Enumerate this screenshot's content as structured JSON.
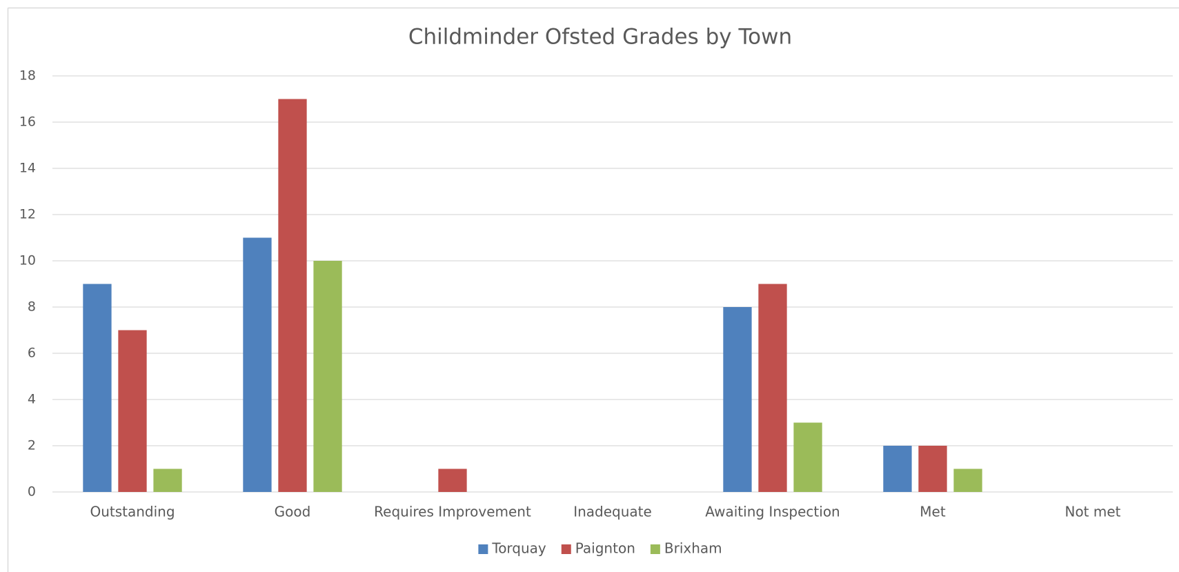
{
  "chart_data": {
    "type": "bar",
    "title": "Childminder Ofsted Grades by Town",
    "categories": [
      "Outstanding",
      "Good",
      "Requires Improvement",
      "Inadequate",
      "Awaiting Inspection",
      "Met",
      "Not met"
    ],
    "series": [
      {
        "name": "Torquay",
        "color": "#4f81bd",
        "values": [
          9,
          11,
          0,
          0,
          8,
          2,
          0
        ]
      },
      {
        "name": "Paignton",
        "color": "#c0504d",
        "values": [
          7,
          17,
          1,
          0,
          9,
          2,
          0
        ]
      },
      {
        "name": "Brixham",
        "color": "#9bbb59",
        "values": [
          1,
          10,
          0,
          0,
          3,
          1,
          0
        ]
      }
    ],
    "ylim": [
      0,
      18
    ],
    "yticks": [
      0,
      2,
      4,
      6,
      8,
      10,
      12,
      14,
      16,
      18
    ],
    "grid": true,
    "legend": "bottom"
  }
}
